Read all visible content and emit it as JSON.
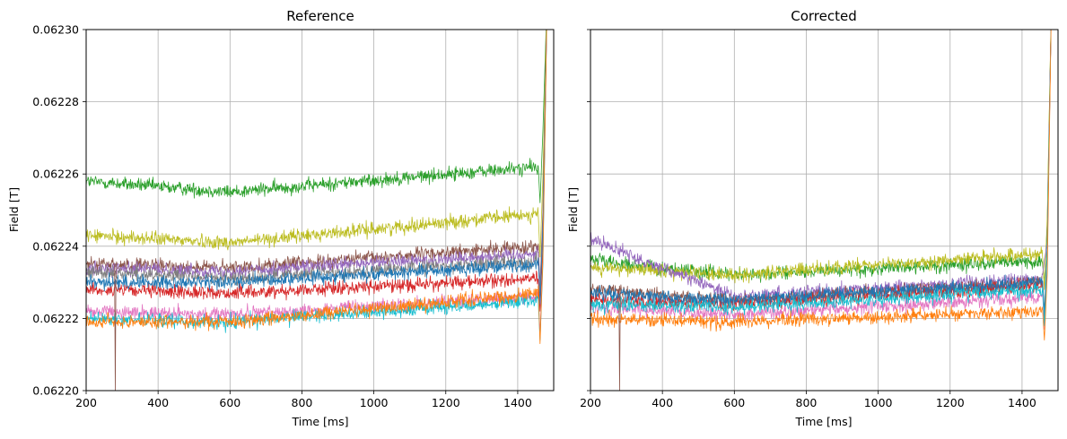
{
  "chart_data": [
    {
      "type": "line",
      "title": "Reference",
      "xlabel": "Time [ms]",
      "ylabel": "Field [T]",
      "xlim": [
        200,
        1500
      ],
      "ylim": [
        0.0622,
        0.0623
      ],
      "x_ticks": [
        200,
        400,
        600,
        800,
        1000,
        1200,
        1400
      ],
      "x_tick_labels": [
        "200",
        "400",
        "600",
        "800",
        "1000",
        "1200",
        "1400"
      ],
      "y_ticks": [
        0.0622,
        0.06222,
        0.06224,
        0.06226,
        0.06228,
        0.0623
      ],
      "y_tick_labels": [
        "0.06220",
        "0.06222",
        "0.06224",
        "0.06226",
        "0.06228",
        "0.06230"
      ],
      "y_tick_labels_visible": true,
      "grid": true,
      "series_note": "approximate trends of noisy traces: level at t=200, level at t=600, level at t=1440 (Field in T)",
      "series": [
        {
          "name": "trace-green",
          "color": "#2ca02c",
          "levels": [
            0.062258,
            0.062255,
            0.062262
          ]
        },
        {
          "name": "trace-olive",
          "color": "#bcbd22",
          "levels": [
            0.062243,
            0.062241,
            0.062249
          ]
        },
        {
          "name": "trace-brown",
          "color": "#8c564b",
          "levels": [
            0.062235,
            0.062234,
            0.06224
          ]
        },
        {
          "name": "trace-purple",
          "color": "#9467bd",
          "levels": [
            0.062234,
            0.062233,
            0.062238
          ]
        },
        {
          "name": "trace-gray",
          "color": "#7f7f7f",
          "levels": [
            0.062233,
            0.062231,
            0.062236
          ]
        },
        {
          "name": "trace-red",
          "color": "#d62728",
          "levels": [
            0.062228,
            0.062227,
            0.062231
          ]
        },
        {
          "name": "trace-blue",
          "color": "#1f77b4",
          "levels": [
            0.06223,
            0.06223,
            0.062235
          ]
        },
        {
          "name": "trace-pink",
          "color": "#e377c2",
          "levels": [
            0.062222,
            0.062221,
            0.062226
          ]
        },
        {
          "name": "trace-cyan",
          "color": "#17becf",
          "levels": [
            0.06222,
            0.062219,
            0.062225
          ]
        },
        {
          "name": "trace-orange",
          "color": "#ff7f0e",
          "levels": [
            0.062219,
            0.062219,
            0.062227
          ]
        }
      ]
    },
    {
      "type": "line",
      "title": "Corrected",
      "xlabel": "Time [ms]",
      "ylabel": "Field [T]",
      "xlim": [
        200,
        1500
      ],
      "ylim": [
        0.0622,
        0.0623
      ],
      "x_ticks": [
        200,
        400,
        600,
        800,
        1000,
        1200,
        1400
      ],
      "x_tick_labels": [
        "200",
        "400",
        "600",
        "800",
        "1000",
        "1200",
        "1400"
      ],
      "y_ticks": [
        0.0622,
        0.06222,
        0.06224,
        0.06226,
        0.06228,
        0.0623
      ],
      "y_tick_labels": [
        "0.06220",
        "0.06222",
        "0.06224",
        "0.06226",
        "0.06228",
        "0.06230"
      ],
      "y_tick_labels_visible": false,
      "grid": true,
      "series_note": "approximate trends of noisy traces: level at t=200, level at t=600, level at t=1440 (Field in T)",
      "series": [
        {
          "name": "trace-green",
          "color": "#2ca02c",
          "levels": [
            0.062236,
            0.062232,
            0.062236
          ]
        },
        {
          "name": "trace-olive",
          "color": "#bcbd22",
          "levels": [
            0.062234,
            0.062232,
            0.062238
          ]
        },
        {
          "name": "trace-purple",
          "color": "#9467bd",
          "levels": [
            0.062242,
            0.062226,
            0.062231
          ]
        },
        {
          "name": "trace-brown",
          "color": "#8c564b",
          "levels": [
            0.062228,
            0.062225,
            0.06223
          ]
        },
        {
          "name": "trace-red",
          "color": "#d62728",
          "levels": [
            0.062225,
            0.062224,
            0.062229
          ]
        },
        {
          "name": "trace-blue",
          "color": "#1f77b4",
          "levels": [
            0.062227,
            0.062225,
            0.06223
          ]
        },
        {
          "name": "trace-pink",
          "color": "#e377c2",
          "levels": [
            0.062223,
            0.062221,
            0.062226
          ]
        },
        {
          "name": "trace-cyan",
          "color": "#17becf",
          "levels": [
            0.062224,
            0.062223,
            0.062228
          ]
        },
        {
          "name": "trace-orange",
          "color": "#ff7f0e",
          "levels": [
            0.06222,
            0.062219,
            0.062222
          ]
        }
      ]
    }
  ]
}
